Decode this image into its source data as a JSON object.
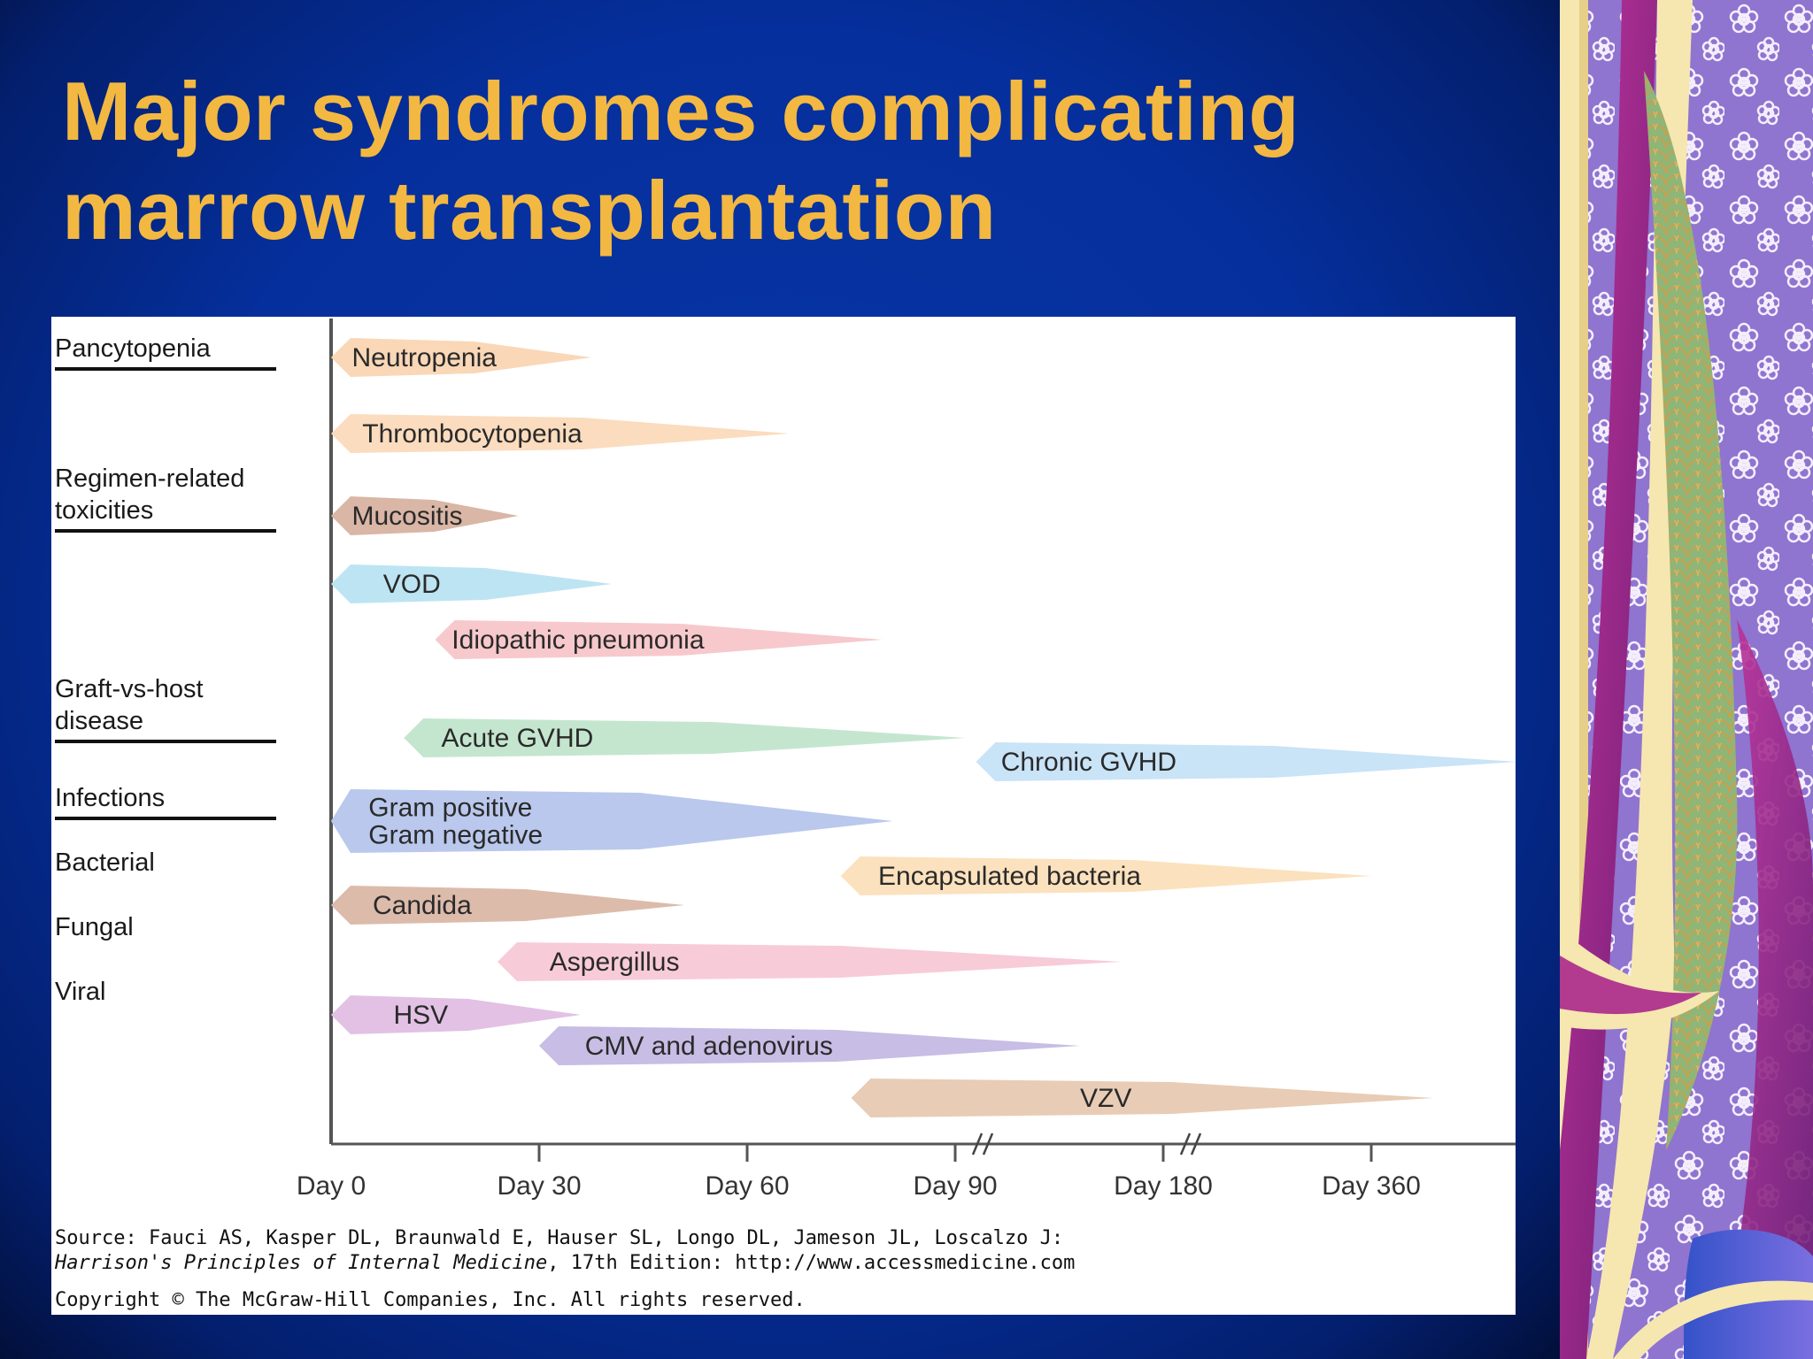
{
  "slide": {
    "title_line1": "Major syndromes complicating",
    "title_line2": "marrow transplantation"
  },
  "colors": {
    "background": "#042a96",
    "title": "#f3b841",
    "border_purple": "#8f74d0",
    "border_cream": "#f6e6b0"
  },
  "categories": [
    {
      "label": [
        "Pancytopenia"
      ],
      "underline": true
    },
    {
      "label": [
        "Regimen-related",
        " toxicities"
      ],
      "underline": true
    },
    {
      "label": [
        "Graft-vs-host",
        " disease"
      ],
      "underline": true
    },
    {
      "label": [
        "Infections"
      ],
      "underline": true
    },
    {
      "label": [
        "Bacterial"
      ],
      "underline": false
    },
    {
      "label": [
        "Fungal"
      ],
      "underline": false
    },
    {
      "label": [
        "Viral"
      ],
      "underline": false
    }
  ],
  "timeline": {
    "ticks": [
      "Day 0",
      "Day 30",
      "Day 60",
      "Day 90",
      "Day 180",
      "Day 360"
    ],
    "breaks_after": [
      "Day 90",
      "Day 180"
    ]
  },
  "syndromes": [
    {
      "label": [
        "Neutropenia"
      ],
      "start": 0,
      "end": 1.25,
      "color": "#f9d7b7",
      "text_offset": 0.1
    },
    {
      "label": [
        "Thrombocytopenia"
      ],
      "start": 0,
      "end": 2.2,
      "color": "#fbdcbe",
      "text_offset": 0.15
    },
    {
      "label": [
        "Mucositis"
      ],
      "start": 0,
      "end": 0.9,
      "color": "#d9b6a5",
      "text_offset": 0.1
    },
    {
      "label": [
        "VOD"
      ],
      "start": 0,
      "end": 1.35,
      "color": "#bde4f2",
      "text_offset": 0.25
    },
    {
      "label": [
        "Idiopathic pneumonia"
      ],
      "start": 0.5,
      "end": 2.65,
      "color": "#f7c9cc",
      "text_offset": 0.08
    },
    {
      "label": [
        "Acute GVHD"
      ],
      "start": 0.35,
      "end": 3.05,
      "color": "#c4e6cf",
      "text_offset": 0.18
    },
    {
      "label": [
        "Chronic GVHD"
      ],
      "start": 3.1,
      "end": 5.7,
      "color": "#c9e3f7",
      "text_offset": 0.12
    },
    {
      "label": [
        "Gram positive",
        "Gram negative"
      ],
      "start": 0,
      "end": 2.7,
      "color": "#b9c8ec",
      "text_offset": 0.18
    },
    {
      "label": [
        "Encapsulated bacteria"
      ],
      "start": 2.45,
      "end": 5.0,
      "color": "#fbe1bd",
      "text_offset": 0.18
    },
    {
      "label": [
        "Candida"
      ],
      "start": 0,
      "end": 1.7,
      "color": "#dcbbab",
      "text_offset": 0.2
    },
    {
      "label": [
        "Aspergillus"
      ],
      "start": 0.8,
      "end": 3.8,
      "color": "#f8cbd8",
      "text_offset": 0.25
    },
    {
      "label": [
        "HSV"
      ],
      "start": 0,
      "end": 1.2,
      "color": "#e2c1e5",
      "text_offset": 0.3
    },
    {
      "label": [
        "CMV and adenovirus"
      ],
      "start": 1.0,
      "end": 3.6,
      "color": "#c7bde5",
      "text_offset": 0.22
    },
    {
      "label": [
        "VZV"
      ],
      "start": 2.5,
      "end": 5.3,
      "color": "#e8ccb5",
      "text_offset": 1.1
    }
  ],
  "source": {
    "line1": "Source: Fauci AS, Kasper DL, Braunwald E, Hauser SL, Longo DL, Jameson JL, Loscalzo J:",
    "line2_italic": "Harrison's Principles of Internal Medicine",
    "line2_rest": ", 17th Edition: http://www.accessmedicine.com",
    "copyright": "Copyright © The McGraw-Hill Companies, Inc. All rights reserved."
  }
}
